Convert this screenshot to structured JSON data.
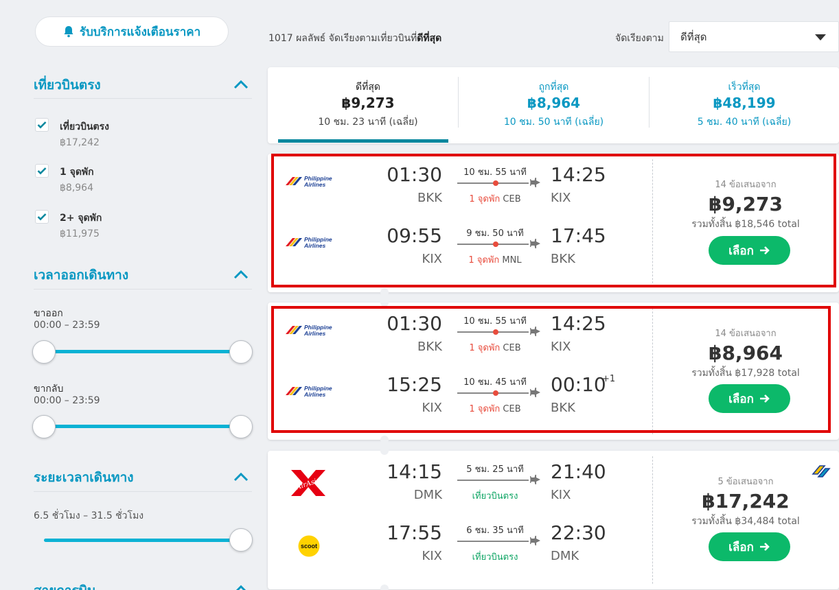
{
  "sidebar": {
    "alert_button": "รับบริการแจ้งเตือนราคา",
    "stops_section": {
      "title": "เที่ยวบินตรง",
      "options": [
        {
          "label": "เที่ยวบินตรง",
          "price": "฿17,242",
          "checked": true
        },
        {
          "label": "1 จุดพัก",
          "price": "฿8,964",
          "checked": true
        },
        {
          "label": "2+ จุดพัก",
          "price": "฿11,975",
          "checked": true
        }
      ]
    },
    "departure_section": {
      "title": "เวลาออกเดินทาง",
      "outbound_label": "ขาออก",
      "outbound_range": "00:00 – 23:59",
      "return_label": "ขากลับ",
      "return_range": "00:00 – 23:59"
    },
    "duration_section": {
      "title": "ระยะเวลาเดินทาง",
      "range": "6.5 ชั่วโมง – 31.5 ชั่วโมง"
    },
    "airlines_section": {
      "title": "สายการบิน"
    }
  },
  "topbar": {
    "summary_prefix": "1017 ผลลัพธ์ จัดเรียงตามเที่ยวบินที่",
    "summary_bold": "ดีที่สุด",
    "sort_label": "จัดเรียงตาม",
    "sort_value": "ดีที่สุด"
  },
  "tabs": [
    {
      "name": "ดีที่สุด",
      "price": "฿9,273",
      "duration": "10 ชม. 23 นาที (เฉลี่ย)",
      "active": true
    },
    {
      "name": "ถูกที่สุด",
      "price": "฿8,964",
      "duration": "10 ชม. 50 นาที (เฉลี่ย)",
      "active": false
    },
    {
      "name": "เร็วที่สุด",
      "price": "฿48,199",
      "duration": "5 ชม. 40 นาที (เฉลี่ย)",
      "active": false
    }
  ],
  "results": [
    {
      "legs": [
        {
          "airline": "Philippine Airlines",
          "logo_line1": "Philippine",
          "logo_line2": "Airlines",
          "dep_time": "01:30",
          "dep_code": "BKK",
          "arr_time": "14:25",
          "arr_code": "KIX",
          "duration": "10 ชม. 55 นาที",
          "stops_label": "1 จุดพัก",
          "stop_airport": "CEB",
          "plus": ""
        },
        {
          "airline": "Philippine Airlines",
          "logo_line1": "Philippine",
          "logo_line2": "Airlines",
          "dep_time": "09:55",
          "dep_code": "KIX",
          "arr_time": "17:45",
          "arr_code": "BKK",
          "duration": "9 ชม. 50 นาที",
          "stops_label": "1 จุดพัก",
          "stop_airport": "MNL",
          "plus": ""
        }
      ],
      "offers": "14 ข้อเสนอจาก",
      "price": "฿9,273",
      "total": "รวมทั้งสิ้น ฿18,546 total",
      "button": "เลือก"
    },
    {
      "legs": [
        {
          "airline": "Philippine Airlines",
          "logo_line1": "Philippine",
          "logo_line2": "Airlines",
          "dep_time": "01:30",
          "dep_code": "BKK",
          "arr_time": "14:25",
          "arr_code": "KIX",
          "duration": "10 ชม. 55 นาที",
          "stops_label": "1 จุดพัก",
          "stop_airport": "CEB",
          "plus": ""
        },
        {
          "airline": "Philippine Airlines",
          "logo_line1": "Philippine",
          "logo_line2": "Airlines",
          "dep_time": "15:25",
          "dep_code": "KIX",
          "arr_time": "00:10",
          "arr_code": "BKK",
          "duration": "10 ชม. 45 นาที",
          "stops_label": "1 จุดพัก",
          "stop_airport": "CEB",
          "plus": "+1"
        }
      ],
      "offers": "14 ข้อเสนอจาก",
      "price": "฿8,964",
      "total": "รวมทั้งสิ้น ฿17,928 total",
      "button": "เลือก"
    },
    {
      "legs": [
        {
          "airline": "AirAsia",
          "logo_text": "AirAsia",
          "dep_time": "14:15",
          "dep_code": "DMK",
          "arr_time": "21:40",
          "arr_code": "KIX",
          "duration": "5 ชม. 25 นาที",
          "stops_label": "เที่ยวบินตรง",
          "plus": ""
        },
        {
          "airline": "Scoot",
          "logo_text": "scoot",
          "dep_time": "17:55",
          "dep_code": "KIX",
          "arr_time": "22:30",
          "arr_code": "DMK",
          "duration": "6 ชม. 35 นาที",
          "stops_label": "เที่ยวบินตรง",
          "plus": ""
        }
      ],
      "offers": "5 ข้อเสนอจาก",
      "price": "฿17,242",
      "total": "รวมทั้งสิ้น ฿34,484 total",
      "button": "เลือก"
    }
  ],
  "colors": {
    "accent": "#0a98c2",
    "button": "#0cb96a",
    "stop": "#e84c3d",
    "direct": "#0fa564",
    "highlight": "#e00000"
  }
}
